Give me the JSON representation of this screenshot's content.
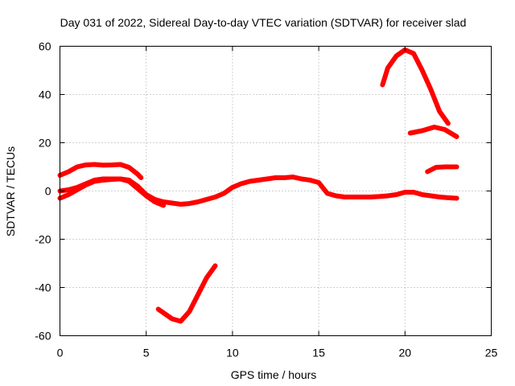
{
  "chart_data": {
    "type": "line",
    "title": "Day 031 of 2022, Sidereal Day-to-day VTEC variation (SDTVAR) for receiver slad",
    "xlabel": "GPS time / hours",
    "ylabel": "SDTVAR / TECUs",
    "xlim": [
      0,
      25
    ],
    "ylim": [
      -60,
      60
    ],
    "xticks": [
      0,
      5,
      10,
      15,
      20,
      25
    ],
    "yticks": [
      -60,
      -40,
      -20,
      0,
      20,
      40,
      60
    ],
    "xtick_labels": [
      "0",
      "5",
      "10",
      "15",
      "20",
      "25"
    ],
    "ytick_labels": [
      "-60",
      "-40",
      "-20",
      "0",
      "20",
      "40",
      "60"
    ],
    "grid": true,
    "color": "#ff0000",
    "series": [
      {
        "name": "arc-1",
        "x": [
          0,
          0.5,
          1,
          1.5,
          2,
          2.5,
          3,
          3.5,
          4,
          4.5,
          4.7
        ],
        "y": [
          6.5,
          8,
          10,
          10.8,
          11,
          10.7,
          10.8,
          11,
          9.8,
          7,
          5.5
        ]
      },
      {
        "name": "arc-2",
        "x": [
          0,
          0.5,
          1,
          1.5,
          2,
          2.5,
          3,
          3.5,
          4,
          4.5,
          5,
          5.5,
          6,
          6.5,
          7,
          7.5,
          8,
          8.5,
          9,
          9.5,
          10,
          10.5,
          11,
          11.5,
          12,
          12.5,
          13,
          13.5,
          14,
          14.5,
          15,
          15.5,
          16,
          16.5,
          17,
          17.5,
          18,
          18.5,
          19,
          19.5,
          20,
          20.5,
          21,
          21.5,
          22,
          22.5,
          23
        ],
        "y": [
          -3,
          -1.5,
          0.5,
          2.5,
          4,
          4.5,
          4.8,
          5,
          4.5,
          2,
          -1.5,
          -3.5,
          -4.5,
          -5,
          -5.5,
          -5.2,
          -4.5,
          -3.5,
          -2.5,
          -1,
          1.5,
          3,
          4,
          4.5,
          5,
          5.5,
          5.5,
          5.8,
          5,
          4.5,
          3.5,
          -1,
          -2,
          -2.5,
          -2.5,
          -2.5,
          -2.5,
          -2.3,
          -2,
          -1.5,
          -0.5,
          -0.5,
          -1.5,
          -2,
          -2.5,
          -2.8,
          -3
        ]
      },
      {
        "name": "arc-3",
        "x": [
          0,
          0.5,
          1,
          1.5,
          2,
          2.5,
          3,
          3.5,
          4,
          4.5,
          5,
          5.5,
          6
        ],
        "y": [
          0,
          0.5,
          1.5,
          3,
          4.5,
          5,
          5,
          5,
          4,
          1,
          -2,
          -4.5,
          -6
        ]
      },
      {
        "name": "arc-4",
        "x": [
          5.7,
          6.5,
          7,
          7.5,
          8,
          8.5,
          9
        ],
        "y": [
          -49,
          -53,
          -54,
          -50,
          -43,
          -36,
          -31
        ]
      },
      {
        "name": "arc-5",
        "x": [
          18.7,
          19,
          19.5,
          20,
          20.5,
          21,
          21.5,
          22,
          22.5
        ],
        "y": [
          44,
          51,
          56,
          58.5,
          57,
          50,
          42,
          33,
          28
        ]
      },
      {
        "name": "arc-6",
        "x": [
          20.3,
          21,
          21.7,
          22.3,
          23
        ],
        "y": [
          24,
          25,
          26.5,
          25.5,
          22.5
        ]
      },
      {
        "name": "arc-7",
        "x": [
          21.3,
          21.8,
          22.3,
          23
        ],
        "y": [
          8,
          9.8,
          10,
          10
        ]
      }
    ]
  }
}
